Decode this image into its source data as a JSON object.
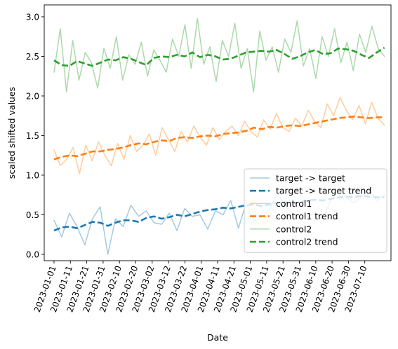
{
  "chart_data": {
    "type": "line",
    "xlabel": "Date",
    "ylabel": "scaled shifted values",
    "ylim": [
      -0.08,
      3.15
    ],
    "y_ticks": [
      "0.0",
      "0.5",
      "1.0",
      "1.5",
      "2.0",
      "2.5",
      "3.0"
    ],
    "x_tick_labels": [
      "2023-01-01",
      "2023-01-11",
      "2023-01-21",
      "2023-01-31",
      "2023-02-10",
      "2023-02-20",
      "2023-03-02",
      "2023-03-12",
      "2023-03-22",
      "2023-04-01",
      "2023-04-11",
      "2023-04-21",
      "2023-05-01",
      "2023-05-11",
      "2023-05-21",
      "2023-05-31",
      "2023-06-10",
      "2023-06-20",
      "2023-06-30",
      "2023-07-10"
    ],
    "x_range": [
      "2022-12-26",
      "2023-07-26"
    ],
    "x_step_days": 5,
    "legend_position": "lower right",
    "series": [
      {
        "name": "target -> target",
        "style": "solid",
        "alpha": 0.4,
        "color": "#1f77b4",
        "start": "2023-01-01",
        "values": [
          0.43,
          0.22,
          0.52,
          0.35,
          0.12,
          0.45,
          0.6,
          0.0,
          0.45,
          0.35,
          0.62,
          0.48,
          0.55,
          0.4,
          0.38,
          0.52,
          0.3,
          0.58,
          0.48,
          0.5,
          0.32,
          0.55,
          0.5,
          0.68,
          0.33,
          0.65,
          0.42,
          0.48,
          0.55,
          0.78,
          0.62,
          0.52,
          0.5,
          0.48,
          0.52,
          0.46,
          0.68,
          0.82,
          0.72,
          0.65,
          0.72,
          0.83,
          0.68,
          0.76
        ]
      },
      {
        "name": "target -> target trend",
        "style": "dashed",
        "color": "#1f77b4",
        "start": "2023-01-01",
        "values": [
          0.3,
          0.34,
          0.35,
          0.33,
          0.37,
          0.41,
          0.4,
          0.36,
          0.4,
          0.43,
          0.43,
          0.41,
          0.46,
          0.48,
          0.45,
          0.47,
          0.5,
          0.48,
          0.51,
          0.54,
          0.56,
          0.57,
          0.59,
          0.58,
          0.6,
          0.62,
          0.63,
          0.61,
          0.63,
          0.65,
          0.66,
          0.64,
          0.66,
          0.68,
          0.69,
          0.68,
          0.7,
          0.72,
          0.73,
          0.72,
          0.74,
          0.73,
          0.72,
          0.72
        ]
      },
      {
        "name": "control1",
        "style": "solid",
        "alpha": 0.4,
        "color": "#ff7f0e",
        "start": "2023-01-01",
        "values": [
          1.32,
          1.12,
          1.2,
          1.35,
          1.02,
          1.38,
          1.18,
          1.42,
          1.25,
          1.12,
          1.4,
          1.2,
          1.5,
          1.3,
          1.38,
          1.52,
          1.25,
          1.6,
          1.45,
          1.3,
          1.55,
          1.42,
          1.62,
          1.48,
          1.38,
          1.6,
          1.45,
          1.55,
          1.62,
          1.5,
          1.68,
          1.55,
          1.48,
          1.7,
          1.58,
          1.78,
          1.6,
          1.55,
          1.72,
          1.62,
          1.82,
          1.68,
          1.6,
          1.9,
          1.75,
          1.98,
          1.82,
          1.7,
          1.88,
          1.65,
          1.92,
          1.72,
          1.63
        ]
      },
      {
        "name": "control1 trend",
        "style": "dashed",
        "color": "#ff7f0e",
        "start": "2023-01-01",
        "values": [
          1.2,
          1.23,
          1.25,
          1.24,
          1.27,
          1.3,
          1.3,
          1.32,
          1.33,
          1.35,
          1.38,
          1.4,
          1.39,
          1.42,
          1.44,
          1.43,
          1.47,
          1.48,
          1.47,
          1.49,
          1.5,
          1.49,
          1.52,
          1.53,
          1.54,
          1.56,
          1.6,
          1.58,
          1.61,
          1.6,
          1.62,
          1.63,
          1.62,
          1.64,
          1.66,
          1.68,
          1.7,
          1.72,
          1.73,
          1.74,
          1.73,
          1.72,
          1.73,
          1.73
        ]
      },
      {
        "name": "control2",
        "style": "solid",
        "alpha": 0.4,
        "color": "#2ca02c",
        "start": "2023-01-01",
        "values": [
          2.3,
          2.85,
          2.05,
          2.7,
          2.2,
          2.55,
          2.42,
          2.1,
          2.6,
          2.35,
          2.75,
          2.2,
          2.52,
          2.4,
          2.68,
          2.25,
          2.58,
          2.45,
          2.3,
          2.72,
          2.5,
          2.9,
          2.35,
          2.98,
          2.4,
          2.62,
          2.18,
          2.7,
          2.5,
          2.92,
          2.35,
          2.6,
          2.05,
          2.82,
          2.45,
          2.62,
          2.3,
          2.72,
          2.55,
          2.95,
          2.38,
          2.6,
          2.22,
          2.75,
          2.5,
          2.85,
          2.42,
          2.68,
          2.32,
          2.78,
          2.55,
          2.88,
          2.6,
          2.5
        ]
      },
      {
        "name": "control2 trend",
        "style": "dashed",
        "color": "#2ca02c",
        "start": "2023-01-01",
        "values": [
          2.45,
          2.39,
          2.38,
          2.44,
          2.41,
          2.38,
          2.42,
          2.46,
          2.45,
          2.49,
          2.47,
          2.43,
          2.39,
          2.48,
          2.5,
          2.49,
          2.52,
          2.5,
          2.55,
          2.49,
          2.52,
          2.5,
          2.46,
          2.47,
          2.51,
          2.55,
          2.56,
          2.57,
          2.56,
          2.58,
          2.53,
          2.47,
          2.5,
          2.55,
          2.58,
          2.53,
          2.54,
          2.6,
          2.59,
          2.57,
          2.52,
          2.48,
          2.55,
          2.61
        ]
      }
    ]
  }
}
